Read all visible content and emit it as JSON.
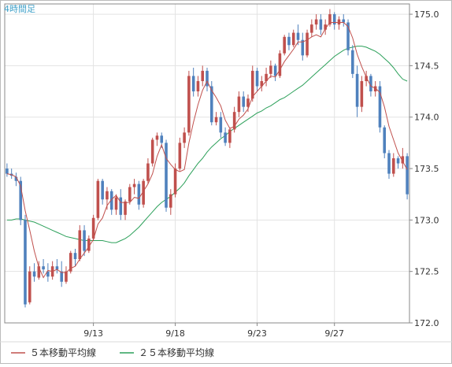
{
  "chart_data": {
    "type": "candlestick",
    "title": "4時間足",
    "y_ticks": [
      "175.0",
      "174.5",
      "174.0",
      "173.5",
      "173.0",
      "172.5",
      "172.0"
    ],
    "y_tick_values": [
      175.0,
      174.5,
      174.0,
      173.5,
      173.0,
      172.5,
      172.0
    ],
    "ylim": [
      172.0,
      175.1
    ],
    "x_ticks": [
      "9/13",
      "9/18",
      "9/23",
      "9/27"
    ],
    "x_tick_index": [
      19,
      37,
      55,
      72
    ],
    "grid": true,
    "legend_position": "bottom-left",
    "colors": {
      "up": "#c0504d",
      "down": "#4f81bd",
      "ma5": "#c0504d",
      "ma25": "#2ca05a",
      "grid": "#e3e3e3",
      "axis": "#888888"
    },
    "candles": [
      [
        173.5,
        173.55,
        173.42,
        173.45
      ],
      [
        173.45,
        173.5,
        173.4,
        173.43
      ],
      [
        173.42,
        173.46,
        173.33,
        173.38
      ],
      [
        173.38,
        173.42,
        172.95,
        173.0
      ],
      [
        173.0,
        173.05,
        172.15,
        172.18
      ],
      [
        172.2,
        172.55,
        172.18,
        172.5
      ],
      [
        172.5,
        172.58,
        172.4,
        172.45
      ],
      [
        172.44,
        172.6,
        172.42,
        172.55
      ],
      [
        172.55,
        172.62,
        172.48,
        172.52
      ],
      [
        172.5,
        172.58,
        172.4,
        172.45
      ],
      [
        172.45,
        172.6,
        172.42,
        172.55
      ],
      [
        172.55,
        172.62,
        172.48,
        172.52
      ],
      [
        172.5,
        172.6,
        172.35,
        172.4
      ],
      [
        172.4,
        172.55,
        172.38,
        172.5
      ],
      [
        172.5,
        172.7,
        172.48,
        172.68
      ],
      [
        172.68,
        172.72,
        172.55,
        172.62
      ],
      [
        172.62,
        172.95,
        172.6,
        172.9
      ],
      [
        172.9,
        172.95,
        172.65,
        172.7
      ],
      [
        172.7,
        172.85,
        172.68,
        172.82
      ],
      [
        172.82,
        173.05,
        172.8,
        173.02
      ],
      [
        173.02,
        173.4,
        173.0,
        173.38
      ],
      [
        173.38,
        173.4,
        173.15,
        173.2
      ],
      [
        173.2,
        173.32,
        173.1,
        173.28
      ],
      [
        173.28,
        173.3,
        173.05,
        173.1
      ],
      [
        173.1,
        173.25,
        173.05,
        173.22
      ],
      [
        173.22,
        173.3,
        173.0,
        173.05
      ],
      [
        173.05,
        173.2,
        173.0,
        173.18
      ],
      [
        173.18,
        173.35,
        173.15,
        173.32
      ],
      [
        173.32,
        173.4,
        173.25,
        173.35
      ],
      [
        173.35,
        173.38,
        173.1,
        173.15
      ],
      [
        173.15,
        173.4,
        173.12,
        173.38
      ],
      [
        173.38,
        173.6,
        173.35,
        173.55
      ],
      [
        173.55,
        173.8,
        173.52,
        173.78
      ],
      [
        173.78,
        173.85,
        173.72,
        173.82
      ],
      [
        173.82,
        173.85,
        173.7,
        173.75
      ],
      [
        173.75,
        173.78,
        173.08,
        173.12
      ],
      [
        173.12,
        173.3,
        173.05,
        173.25
      ],
      [
        173.25,
        173.55,
        173.22,
        173.5
      ],
      [
        173.5,
        173.8,
        173.48,
        173.75
      ],
      [
        173.75,
        173.9,
        173.7,
        173.85
      ],
      [
        173.85,
        174.45,
        173.82,
        174.4
      ],
      [
        174.4,
        174.48,
        174.2,
        174.25
      ],
      [
        174.25,
        174.4,
        174.2,
        174.35
      ],
      [
        174.35,
        174.5,
        174.3,
        174.45
      ],
      [
        174.45,
        174.48,
        174.25,
        174.3
      ],
      [
        174.3,
        174.35,
        173.92,
        173.95
      ],
      [
        173.95,
        174.05,
        173.92,
        174.0
      ],
      [
        174.0,
        174.05,
        173.8,
        173.85
      ],
      [
        173.85,
        173.9,
        173.72,
        173.75
      ],
      [
        173.75,
        173.9,
        173.7,
        173.88
      ],
      [
        173.88,
        174.1,
        173.85,
        174.05
      ],
      [
        174.05,
        174.25,
        174.0,
        174.2
      ],
      [
        174.2,
        174.25,
        174.05,
        174.1
      ],
      [
        174.1,
        174.22,
        174.05,
        174.18
      ],
      [
        174.18,
        174.5,
        174.15,
        174.45
      ],
      [
        174.45,
        174.48,
        174.25,
        174.3
      ],
      [
        174.3,
        174.4,
        174.25,
        174.35
      ],
      [
        174.35,
        174.48,
        174.3,
        174.42
      ],
      [
        174.42,
        174.55,
        174.38,
        174.5
      ],
      [
        174.5,
        174.52,
        174.35,
        174.4
      ],
      [
        174.4,
        174.65,
        174.38,
        174.62
      ],
      [
        174.62,
        174.8,
        174.6,
        174.78
      ],
      [
        174.78,
        174.82,
        174.65,
        174.7
      ],
      [
        174.7,
        174.85,
        174.68,
        174.82
      ],
      [
        174.82,
        174.9,
        174.7,
        174.75
      ],
      [
        174.75,
        174.82,
        174.55,
        174.6
      ],
      [
        174.6,
        174.85,
        174.58,
        174.82
      ],
      [
        174.82,
        174.95,
        174.78,
        174.9
      ],
      [
        174.9,
        175.0,
        174.85,
        174.95
      ],
      [
        174.95,
        175.0,
        174.8,
        174.85
      ],
      [
        174.85,
        174.95,
        174.8,
        174.9
      ],
      [
        174.9,
        175.05,
        174.88,
        175.0
      ],
      [
        175.0,
        175.02,
        174.85,
        174.9
      ],
      [
        174.9,
        174.98,
        174.85,
        174.95
      ],
      [
        174.95,
        175.0,
        174.88,
        174.92
      ],
      [
        174.92,
        174.95,
        174.6,
        174.65
      ],
      [
        174.65,
        174.7,
        174.38,
        174.42
      ],
      [
        174.42,
        174.5,
        174.0,
        174.1
      ],
      [
        174.1,
        174.4,
        174.05,
        174.35
      ],
      [
        174.35,
        174.45,
        174.3,
        174.4
      ],
      [
        174.4,
        174.42,
        174.2,
        174.25
      ],
      [
        174.25,
        174.35,
        174.2,
        174.3
      ],
      [
        174.3,
        174.35,
        173.85,
        173.9
      ],
      [
        173.9,
        173.92,
        173.6,
        173.65
      ],
      [
        173.65,
        173.68,
        173.4,
        173.45
      ],
      [
        173.45,
        173.65,
        173.42,
        173.6
      ],
      [
        173.6,
        173.62,
        173.5,
        173.55
      ],
      [
        173.55,
        173.7,
        173.5,
        173.62
      ],
      [
        173.62,
        173.65,
        173.2,
        173.25
      ]
    ],
    "series": [
      {
        "name": "５本移動平均線",
        "color": "#c0504d",
        "values": [
          173.45,
          173.44,
          173.42,
          173.33,
          173.09,
          172.9,
          172.7,
          172.54,
          172.44,
          172.51,
          172.5,
          172.52,
          172.49,
          172.49,
          172.53,
          172.55,
          172.62,
          172.68,
          172.74,
          172.81,
          172.96,
          173.02,
          173.14,
          173.2,
          173.24,
          173.17,
          173.17,
          173.17,
          173.22,
          173.21,
          173.28,
          173.35,
          173.45,
          173.62,
          173.73,
          173.6,
          173.54,
          173.49,
          173.47,
          173.49,
          173.75,
          173.95,
          174.12,
          174.26,
          174.35,
          174.26,
          174.19,
          174.11,
          173.97,
          173.89,
          173.91,
          173.98,
          174.02,
          174.08,
          174.2,
          174.25,
          174.3,
          174.35,
          174.4,
          174.39,
          174.46,
          174.54,
          174.6,
          174.66,
          174.73,
          174.73,
          174.75,
          174.78,
          174.8,
          174.78,
          174.86,
          174.92,
          174.92,
          174.92,
          174.92,
          174.88,
          174.77,
          174.61,
          174.49,
          174.39,
          174.3,
          174.28,
          174.24,
          174.1,
          173.91,
          173.78,
          173.65,
          173.57,
          173.49
        ]
      },
      {
        "name": "２５本移動平均線",
        "color": "#2ca05a",
        "values": [
          173.0,
          173.0,
          173.01,
          173.01,
          173.0,
          172.99,
          172.98,
          172.96,
          172.94,
          172.92,
          172.9,
          172.88,
          172.86,
          172.84,
          172.83,
          172.82,
          172.81,
          172.8,
          172.8,
          172.8,
          172.8,
          172.8,
          172.79,
          172.78,
          172.78,
          172.8,
          172.82,
          172.85,
          172.89,
          172.93,
          172.98,
          173.03,
          173.08,
          173.13,
          173.17,
          173.2,
          173.23,
          173.27,
          173.31,
          173.36,
          173.43,
          173.49,
          173.55,
          173.6,
          173.66,
          173.71,
          173.75,
          173.79,
          173.82,
          173.86,
          173.89,
          173.92,
          173.95,
          173.98,
          174.01,
          174.04,
          174.06,
          174.09,
          174.11,
          174.14,
          174.17,
          174.19,
          174.22,
          174.25,
          174.28,
          174.31,
          174.35,
          174.39,
          174.43,
          174.47,
          174.51,
          174.55,
          174.59,
          174.62,
          174.65,
          174.67,
          174.68,
          174.69,
          174.69,
          174.68,
          174.66,
          174.64,
          174.61,
          174.57,
          174.53,
          174.48,
          174.42,
          174.37,
          174.35
        ]
      }
    ]
  }
}
